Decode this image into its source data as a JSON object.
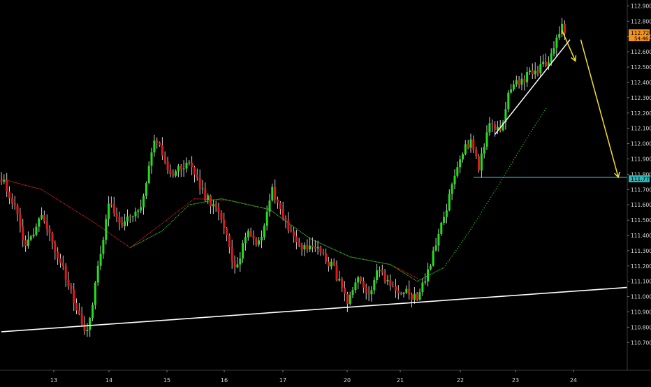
{
  "chart_data": {
    "type": "candlestick",
    "title": "",
    "xlabel": "",
    "ylabel": "",
    "ylim": [
      110.66,
      112.94
    ],
    "y_ticks": [
      "112.900",
      "112.800",
      "112.700",
      "112.600",
      "112.500",
      "112.400",
      "112.300",
      "112.200",
      "112.100",
      "112.000",
      "111.900",
      "111.800",
      "111.700",
      "111.600",
      "111.500",
      "111.400",
      "111.300",
      "111.200",
      "111.100",
      "111.000",
      "110.900",
      "110.800",
      "110.700"
    ],
    "x_ticks": [
      "13",
      "14",
      "15",
      "16",
      "17",
      "20",
      "21",
      "22",
      "23",
      "24"
    ],
    "grid": false,
    "colors": {
      "background": "#000000",
      "up": "#22e01a",
      "down": "#e01818",
      "wick": "#cfcfcf",
      "ma_slow": "#c21a1a",
      "ma_fast": "#19b319",
      "trendline": "#ffffff",
      "arrow": "#f7e02a",
      "level": "#2bb8b8",
      "last_price_tag": "#f5931e"
    },
    "anchors": [
      {
        "i": 0,
        "v": 111.78
      },
      {
        "i": 5,
        "v": 111.58
      },
      {
        "i": 9,
        "v": 111.32
      },
      {
        "i": 15,
        "v": 111.55
      },
      {
        "i": 22,
        "v": 111.22
      },
      {
        "i": 27,
        "v": 110.97
      },
      {
        "i": 32,
        "v": 110.76
      },
      {
        "i": 35,
        "v": 111.07
      },
      {
        "i": 40,
        "v": 111.62
      },
      {
        "i": 45,
        "v": 111.48
      },
      {
        "i": 52,
        "v": 111.56
      },
      {
        "i": 57,
        "v": 112.04
      },
      {
        "i": 63,
        "v": 111.8
      },
      {
        "i": 70,
        "v": 111.88
      },
      {
        "i": 75,
        "v": 111.68
      },
      {
        "i": 82,
        "v": 111.52
      },
      {
        "i": 87,
        "v": 111.17
      },
      {
        "i": 92,
        "v": 111.44
      },
      {
        "i": 96,
        "v": 111.34
      },
      {
        "i": 101,
        "v": 111.71
      },
      {
        "i": 106,
        "v": 111.48
      },
      {
        "i": 112,
        "v": 111.31
      },
      {
        "i": 118,
        "v": 111.32
      },
      {
        "i": 124,
        "v": 111.18
      },
      {
        "i": 129,
        "v": 110.95
      },
      {
        "i": 133,
        "v": 111.1
      },
      {
        "i": 137,
        "v": 111.03
      },
      {
        "i": 141,
        "v": 111.18
      },
      {
        "i": 145,
        "v": 111.07
      },
      {
        "i": 150,
        "v": 111.03
      },
      {
        "i": 155,
        "v": 110.99
      },
      {
        "i": 160,
        "v": 111.21
      },
      {
        "i": 166,
        "v": 111.58
      },
      {
        "i": 171,
        "v": 111.92
      },
      {
        "i": 175,
        "v": 112.03
      },
      {
        "i": 178,
        "v": 111.85
      },
      {
        "i": 182,
        "v": 112.13
      },
      {
        "i": 186,
        "v": 112.08
      },
      {
        "i": 190,
        "v": 112.38
      },
      {
        "i": 195,
        "v": 112.43
      },
      {
        "i": 200,
        "v": 112.48
      },
      {
        "i": 205,
        "v": 112.57
      },
      {
        "i": 209,
        "v": 112.78
      },
      {
        "i": 210,
        "v": 112.72
      }
    ],
    "ma_slow": [
      {
        "i": 0,
        "v": 111.77
      },
      {
        "i": 15,
        "v": 111.7
      },
      {
        "i": 35,
        "v": 111.48
      },
      {
        "i": 48,
        "v": 111.32
      },
      {
        "i": 60,
        "v": 111.48
      },
      {
        "i": 72,
        "v": 111.64
      },
      {
        "i": 85,
        "v": 111.63
      },
      {
        "i": 100,
        "v": 111.57
      },
      {
        "i": 115,
        "v": 111.38
      },
      {
        "i": 130,
        "v": 111.26
      },
      {
        "i": 145,
        "v": 111.21
      },
      {
        "i": 155,
        "v": 111.12
      }
    ],
    "ma_fast": [
      {
        "i": 48,
        "v": 111.32
      },
      {
        "i": 60,
        "v": 111.43
      },
      {
        "i": 70,
        "v": 111.6
      },
      {
        "i": 82,
        "v": 111.64
      },
      {
        "i": 100,
        "v": 111.57
      },
      {
        "i": 115,
        "v": 111.38
      },
      {
        "i": 130,
        "v": 111.26
      },
      {
        "i": 145,
        "v": 111.21
      },
      {
        "i": 155,
        "v": 111.1
      },
      {
        "i": 165,
        "v": 111.19
      },
      {
        "i": 175,
        "v": 111.44
      },
      {
        "i": 185,
        "v": 111.72
      },
      {
        "i": 195,
        "v": 112.01
      },
      {
        "i": 203,
        "v": 112.23
      }
    ],
    "drawings": {
      "support_trendline": {
        "from": {
          "i": 0,
          "v": 110.77
        },
        "to": {
          "i": 225,
          "v": 111.06
        }
      },
      "rising_trendline": {
        "from": {
          "i": 184,
          "v": 112.06
        },
        "to": {
          "i": 212,
          "v": 112.68
        }
      },
      "horizontal_level": {
        "from_i": 176,
        "value": 111.78
      },
      "arrows": [
        {
          "from": {
            "i": 209,
            "v": 112.74
          },
          "to": {
            "i": 214,
            "v": 112.54
          }
        },
        {
          "from": {
            "i": 216,
            "v": 112.68
          },
          "to": {
            "i": 230,
            "v": 111.78
          }
        }
      ]
    },
    "price_tags": [
      {
        "label": "112.724",
        "sublabel": "54:46",
        "value": 112.724,
        "color": "#f5931e"
      },
      {
        "label": "111.770",
        "value": 111.77,
        "color": "#2bb8b8"
      }
    ]
  }
}
